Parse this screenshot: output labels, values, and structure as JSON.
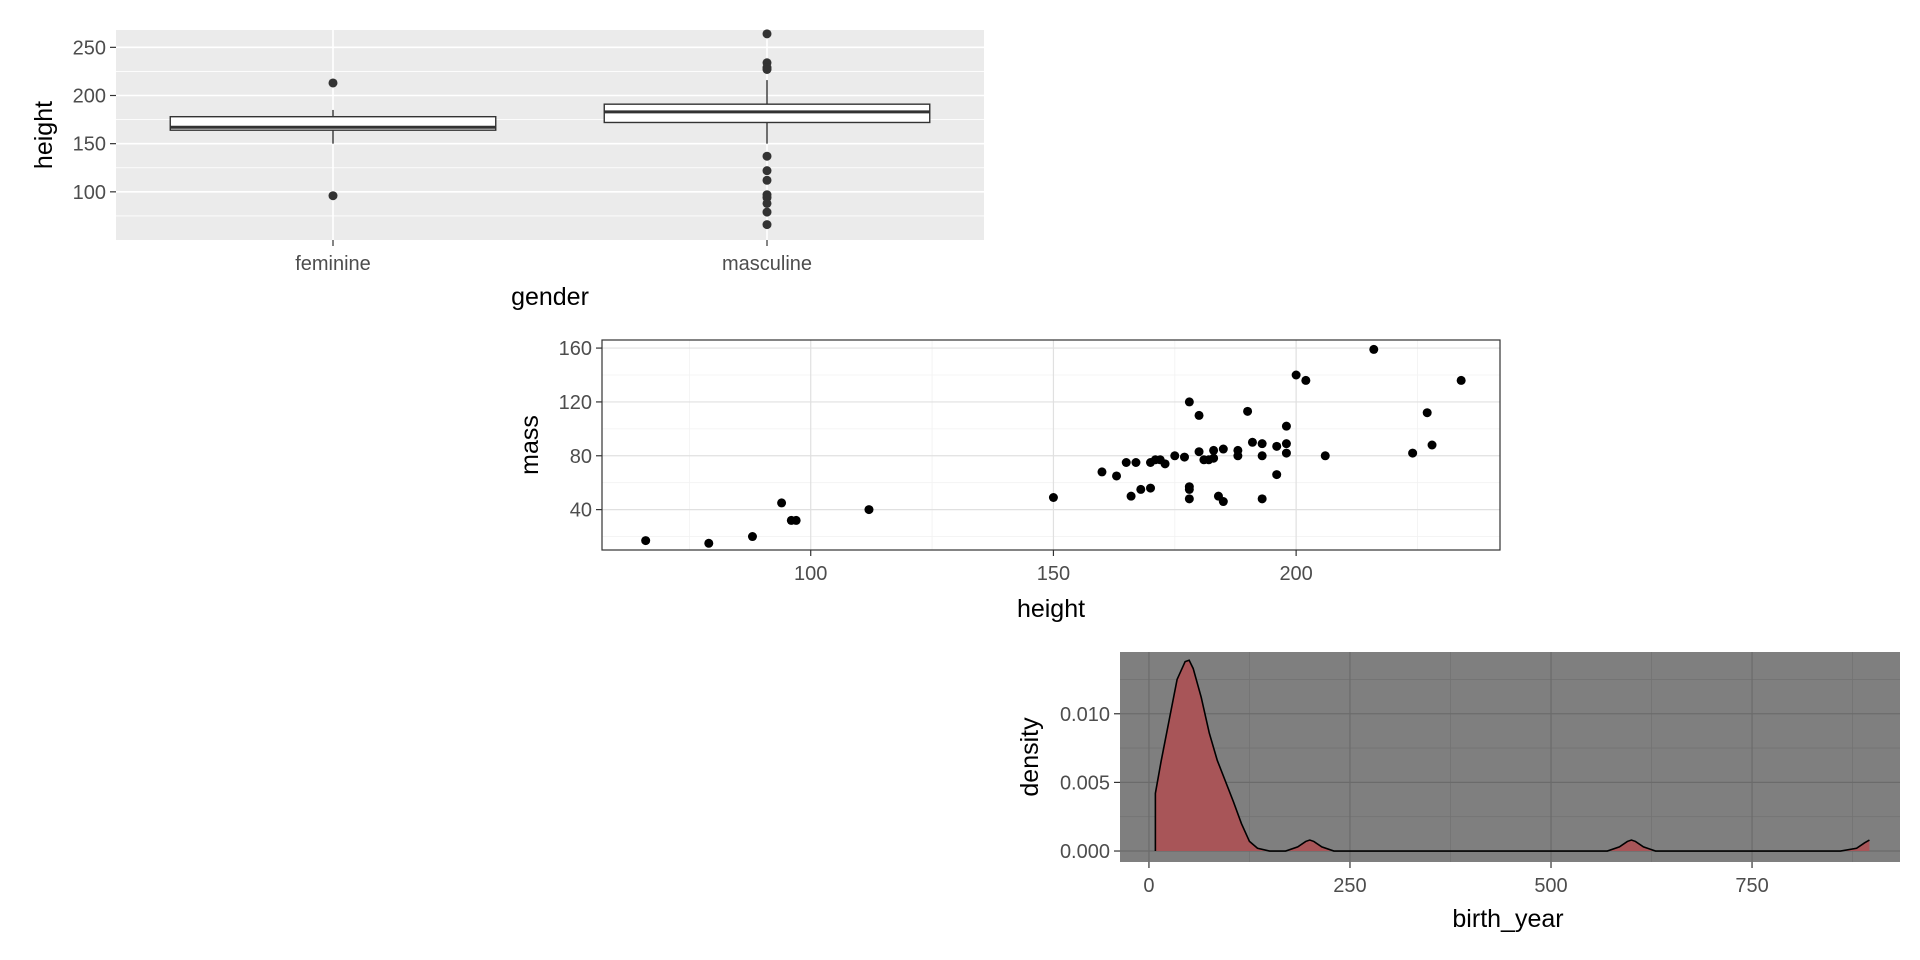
{
  "chart_data": [
    {
      "type": "boxplot",
      "theme": "grey",
      "xlabel": "gender",
      "ylabel": "height",
      "categories": [
        "feminine",
        "masculine"
      ],
      "ylim": [
        50,
        268
      ],
      "yticks": [
        100,
        150,
        200,
        250
      ],
      "boxes": [
        {
          "category": "feminine",
          "lower_whisker": 150,
          "q1": 164,
          "median": 167,
          "q3": 178,
          "upper_whisker": 185,
          "outliers": [
            213,
            96
          ]
        },
        {
          "category": "masculine",
          "lower_whisker": 150,
          "q1": 172,
          "median": 183,
          "q3": 191,
          "upper_whisker": 216,
          "outliers": [
            264,
            234,
            229,
            227,
            137,
            122,
            112,
            97,
            94,
            88,
            79,
            66
          ]
        }
      ],
      "grid": true
    },
    {
      "type": "scatter",
      "theme": "light",
      "xlabel": "height",
      "ylabel": "mass",
      "xlim": [
        57,
        242
      ],
      "ylim": [
        10,
        166
      ],
      "xticks": [
        100,
        150,
        200
      ],
      "yticks": [
        40,
        80,
        120,
        160
      ],
      "points": [
        {
          "x": 66,
          "y": 17
        },
        {
          "x": 79,
          "y": 15
        },
        {
          "x": 88,
          "y": 20
        },
        {
          "x": 94,
          "y": 45
        },
        {
          "x": 96,
          "y": 32
        },
        {
          "x": 97,
          "y": 32
        },
        {
          "x": 112,
          "y": 40
        },
        {
          "x": 150,
          "y": 49
        },
        {
          "x": 160,
          "y": 68
        },
        {
          "x": 163,
          "y": 65
        },
        {
          "x": 165,
          "y": 75
        },
        {
          "x": 166,
          "y": 50
        },
        {
          "x": 167,
          "y": 75
        },
        {
          "x": 168,
          "y": 55
        },
        {
          "x": 170,
          "y": 56
        },
        {
          "x": 170,
          "y": 75
        },
        {
          "x": 171,
          "y": 77
        },
        {
          "x": 172,
          "y": 77
        },
        {
          "x": 173,
          "y": 74
        },
        {
          "x": 175,
          "y": 80
        },
        {
          "x": 177,
          "y": 79
        },
        {
          "x": 178,
          "y": 120
        },
        {
          "x": 178,
          "y": 57
        },
        {
          "x": 178,
          "y": 48
        },
        {
          "x": 178,
          "y": 55
        },
        {
          "x": 180,
          "y": 110
        },
        {
          "x": 180,
          "y": 83
        },
        {
          "x": 181,
          "y": 77
        },
        {
          "x": 182,
          "y": 77
        },
        {
          "x": 183,
          "y": 78.2
        },
        {
          "x": 183,
          "y": 84
        },
        {
          "x": 184,
          "y": 50
        },
        {
          "x": 185,
          "y": 46
        },
        {
          "x": 185,
          "y": 85
        },
        {
          "x": 188,
          "y": 84
        },
        {
          "x": 188,
          "y": 80
        },
        {
          "x": 190,
          "y": 113
        },
        {
          "x": 191,
          "y": 90
        },
        {
          "x": 193,
          "y": 89
        },
        {
          "x": 193,
          "y": 48
        },
        {
          "x": 193,
          "y": 80
        },
        {
          "x": 196,
          "y": 66
        },
        {
          "x": 196,
          "y": 87
        },
        {
          "x": 198,
          "y": 102
        },
        {
          "x": 198,
          "y": 82
        },
        {
          "x": 198,
          "y": 89
        },
        {
          "x": 200,
          "y": 140
        },
        {
          "x": 202,
          "y": 136
        },
        {
          "x": 206,
          "y": 80
        },
        {
          "x": 216,
          "y": 159
        },
        {
          "x": 224,
          "y": 82
        },
        {
          "x": 227,
          "y": 112
        },
        {
          "x": 228,
          "y": 88
        },
        {
          "x": 234,
          "y": 136
        }
      ],
      "grid": true
    },
    {
      "type": "area",
      "subtype": "density",
      "theme": "dark",
      "xlabel": "birth_year",
      "ylabel": "density",
      "xlim": [
        -36,
        934
      ],
      "ylim": [
        -0.0008,
        0.0145
      ],
      "xticks": [
        0,
        250,
        500,
        750
      ],
      "yticks": [
        0.0,
        0.005,
        0.01
      ],
      "ytick_labels": [
        "0.000",
        "0.005",
        "0.010"
      ],
      "fill_color": "#a85558",
      "x": [
        8,
        15,
        25,
        35,
        45,
        50,
        55,
        65,
        75,
        85,
        95,
        105,
        115,
        125,
        135,
        150,
        170,
        185,
        195,
        200,
        205,
        215,
        230,
        250,
        300,
        400,
        500,
        570,
        585,
        595,
        600,
        605,
        615,
        630,
        700,
        800,
        860,
        880,
        890,
        896
      ],
      "y": [
        0.0042,
        0.0065,
        0.0095,
        0.0125,
        0.0138,
        0.0139,
        0.0133,
        0.0112,
        0.0086,
        0.0066,
        0.0051,
        0.0036,
        0.002,
        0.0007,
        0.0002,
        0.0,
        0.0,
        0.0003,
        0.0007,
        0.0008,
        0.0007,
        0.0003,
        0.0,
        0.0,
        0.0,
        0.0,
        0.0,
        0.0,
        0.0003,
        0.0007,
        0.0008,
        0.0007,
        0.0003,
        0.0,
        0.0,
        0.0,
        0.0,
        0.0002,
        0.0006,
        0.0008
      ],
      "grid": true
    }
  ]
}
